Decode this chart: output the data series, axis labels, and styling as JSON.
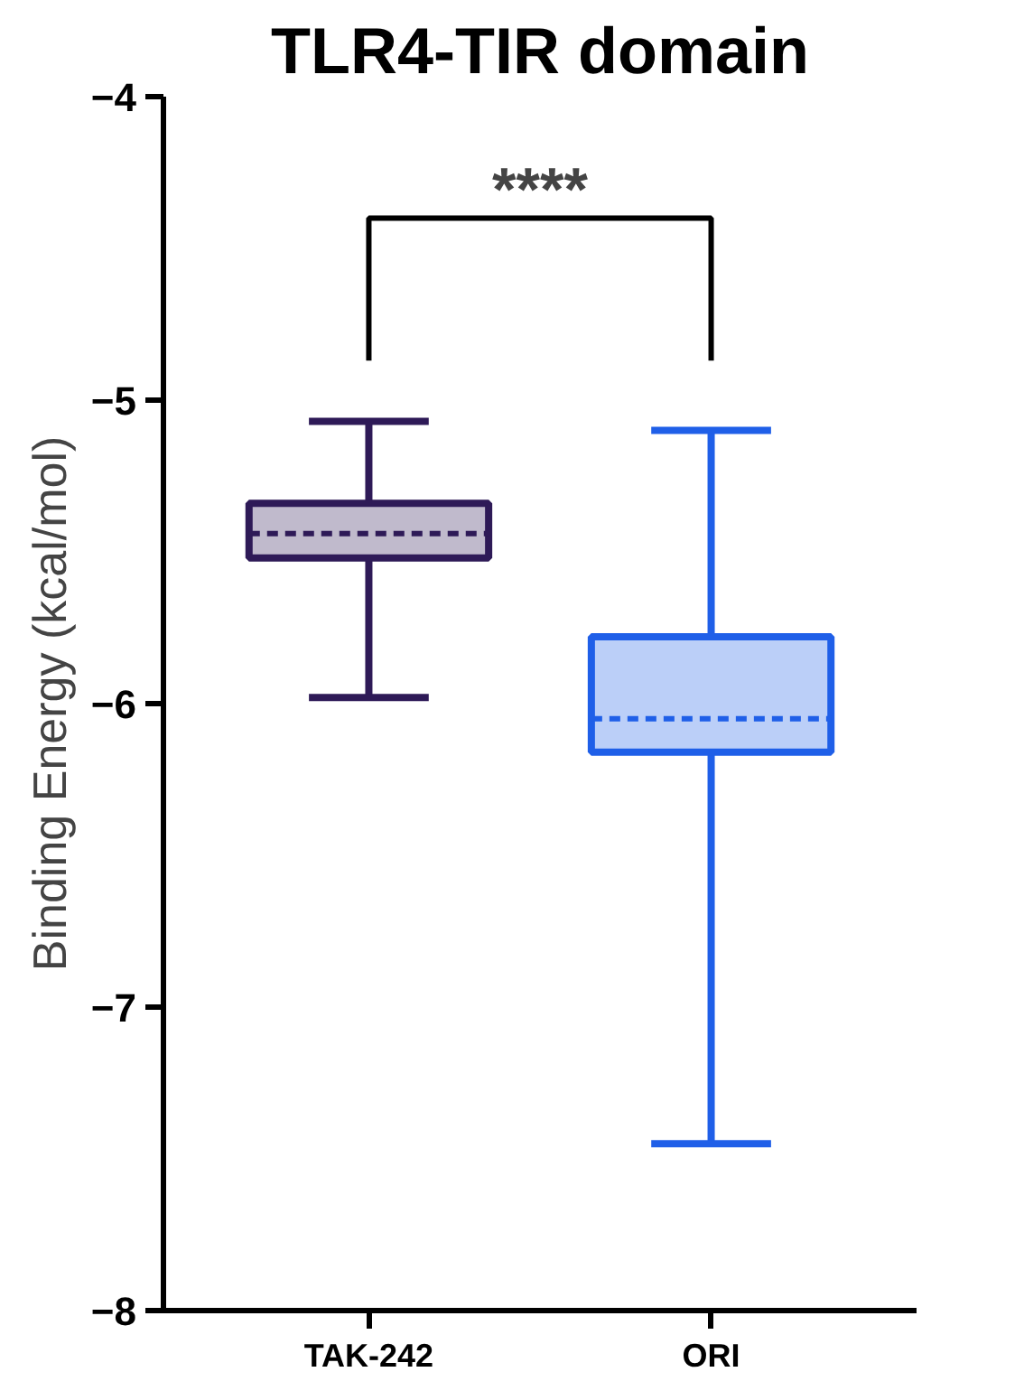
{
  "chart_data": {
    "type": "box",
    "title": "TLR4-TIR domain",
    "ylabel": "Binding Energy (kcal/mol)",
    "categories": [
      "TAK-242",
      "ORI"
    ],
    "boxes": [
      {
        "low": -5.98,
        "q1": -5.52,
        "median": -5.44,
        "q3": -5.34,
        "high": -5.07
      },
      {
        "low": -7.45,
        "q1": -6.16,
        "median": -6.05,
        "q3": -5.78,
        "high": -5.1
      }
    ],
    "colors": [
      "#2e1a57",
      "#1f5fe8"
    ],
    "ylim": [
      -8,
      -4
    ],
    "yticks": [
      -8,
      -7,
      -6,
      -5,
      -4
    ],
    "grid": false,
    "annotations": [
      "****"
    ]
  }
}
